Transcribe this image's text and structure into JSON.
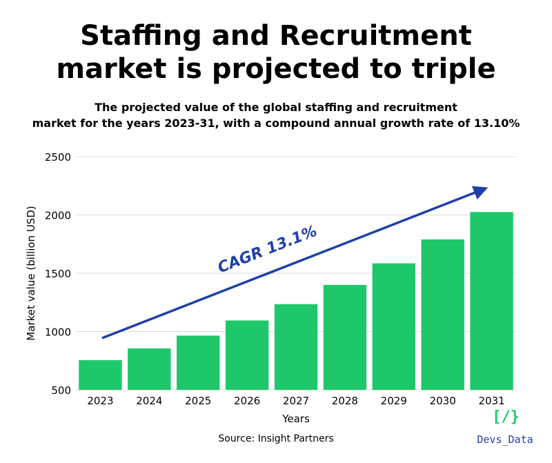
{
  "header": {
    "title_line1": "Staffing and Recruitment",
    "title_line2": "market is projected to triple",
    "subtitle_line1": "The projected value of the global staffing and recruitment",
    "subtitle_line2": "market for the years 2023-31, with a compound annual growth rate of 13.10%"
  },
  "chart_data": {
    "type": "bar",
    "categories": [
      "2023",
      "2024",
      "2025",
      "2026",
      "2027",
      "2028",
      "2029",
      "2030",
      "2031"
    ],
    "values": [
      755,
      855,
      965,
      1095,
      1235,
      1400,
      1585,
      1790,
      2025
    ],
    "xlabel": "Years",
    "ylabel": "Market value (billion USD)",
    "ylim": [
      500,
      2500
    ],
    "yticks": [
      500,
      1000,
      1500,
      2000,
      2500
    ],
    "grid": true,
    "annotation": "CAGR 13.1%",
    "bar_color": "#1ec86a",
    "arrow_color": "#1e40a8",
    "grid_color": "#d9d9d9"
  },
  "footer": {
    "source": "Source: Insight Partners",
    "brand_icon": "[/}",
    "brand_name": "Devs_Data"
  }
}
